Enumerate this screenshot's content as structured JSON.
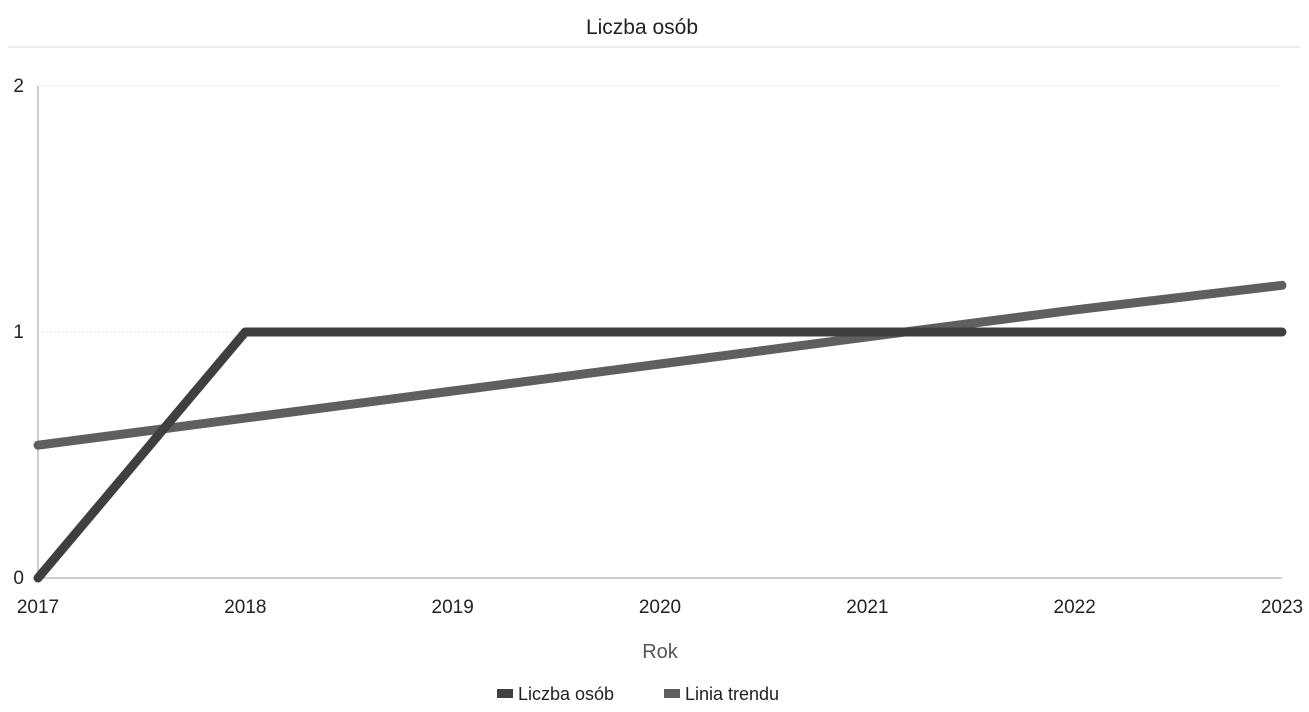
{
  "chart_data": {
    "type": "line",
    "title": "Liczba osób",
    "xlabel": "Rok",
    "ylabel": "",
    "x": [
      "2017",
      "2018",
      "2019",
      "2020",
      "2021",
      "2022",
      "2023"
    ],
    "ylim": [
      0,
      2
    ],
    "yticks": [
      "0",
      "1",
      "2"
    ],
    "grid": true,
    "legend_position": "bottom",
    "series": [
      {
        "name": "Liczba osób",
        "values": [
          0,
          1,
          1,
          1,
          1,
          1,
          1
        ],
        "color": "#3f3f3f"
      },
      {
        "name": "Linia trendu",
        "values": [
          0.54,
          0.65,
          0.76,
          0.87,
          0.98,
          1.09,
          1.19
        ],
        "color": "#5f5f5f"
      }
    ]
  }
}
